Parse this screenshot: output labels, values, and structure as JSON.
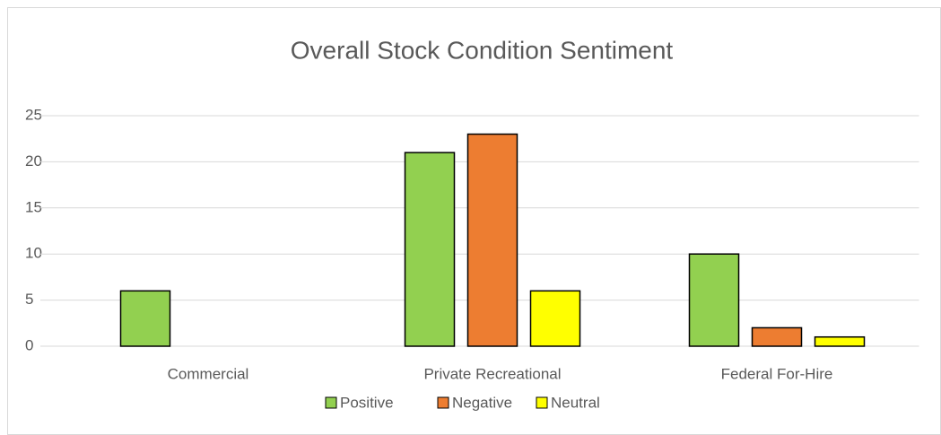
{
  "chart_data": {
    "type": "bar",
    "title": "Overall Stock Condition Sentiment",
    "categories": [
      "Commercial",
      "Private Recreational",
      "Federal For-Hire"
    ],
    "series": [
      {
        "name": "Positive",
        "color": "#92d050",
        "values": [
          6,
          21,
          10
        ]
      },
      {
        "name": "Negative",
        "color": "#ed7d31",
        "values": [
          null,
          23,
          2
        ]
      },
      {
        "name": "Neutral",
        "color": "#ffff00",
        "values": [
          null,
          6,
          1
        ]
      }
    ],
    "ylim": [
      0,
      25
    ],
    "yticks": [
      0,
      5,
      10,
      15,
      20,
      25
    ],
    "grid": true,
    "legend": "bottom"
  }
}
